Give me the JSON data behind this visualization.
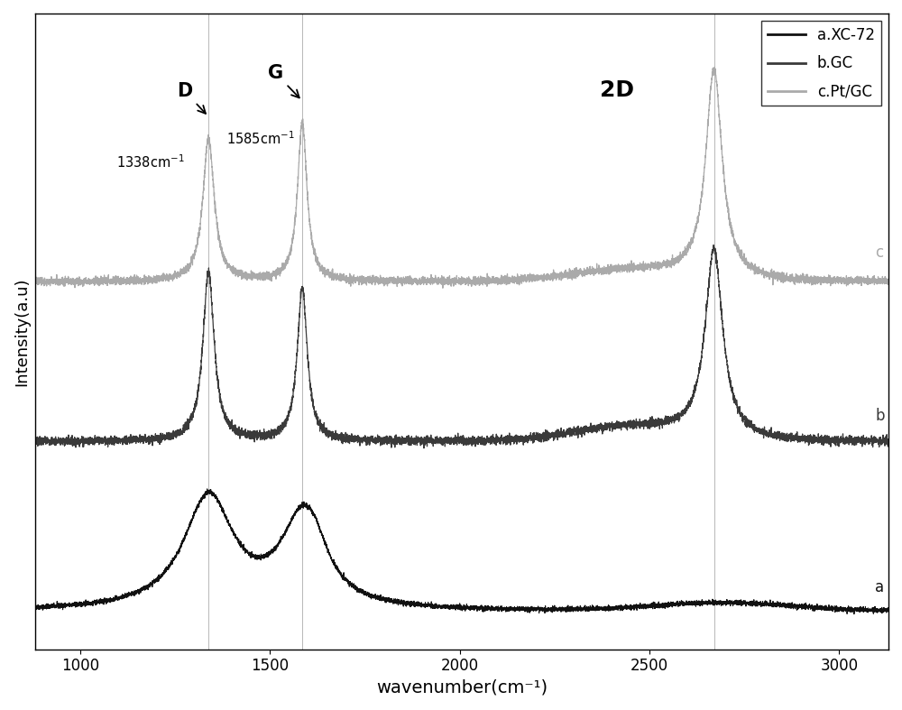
{
  "xlabel": "wavenumber(cm⁻¹)",
  "ylabel": "Intensity(a.u)",
  "xlim": [
    880,
    3130
  ],
  "xticks": [
    1000,
    1500,
    2000,
    2500,
    3000
  ],
  "colors": {
    "a_XC72": "#111111",
    "b_GC": "#3a3a3a",
    "c_PtGC": "#aaaaaa"
  },
  "legend_labels": [
    "a.XC-72",
    "b.GC",
    "c.Pt/GC"
  ],
  "D_peak": 1338,
  "G_peak": 1585,
  "TwoD_peak": 2670,
  "vertical_lines": [
    1338,
    1585,
    2670
  ],
  "figsize": [
    10.0,
    7.87
  ],
  "dpi": 100
}
